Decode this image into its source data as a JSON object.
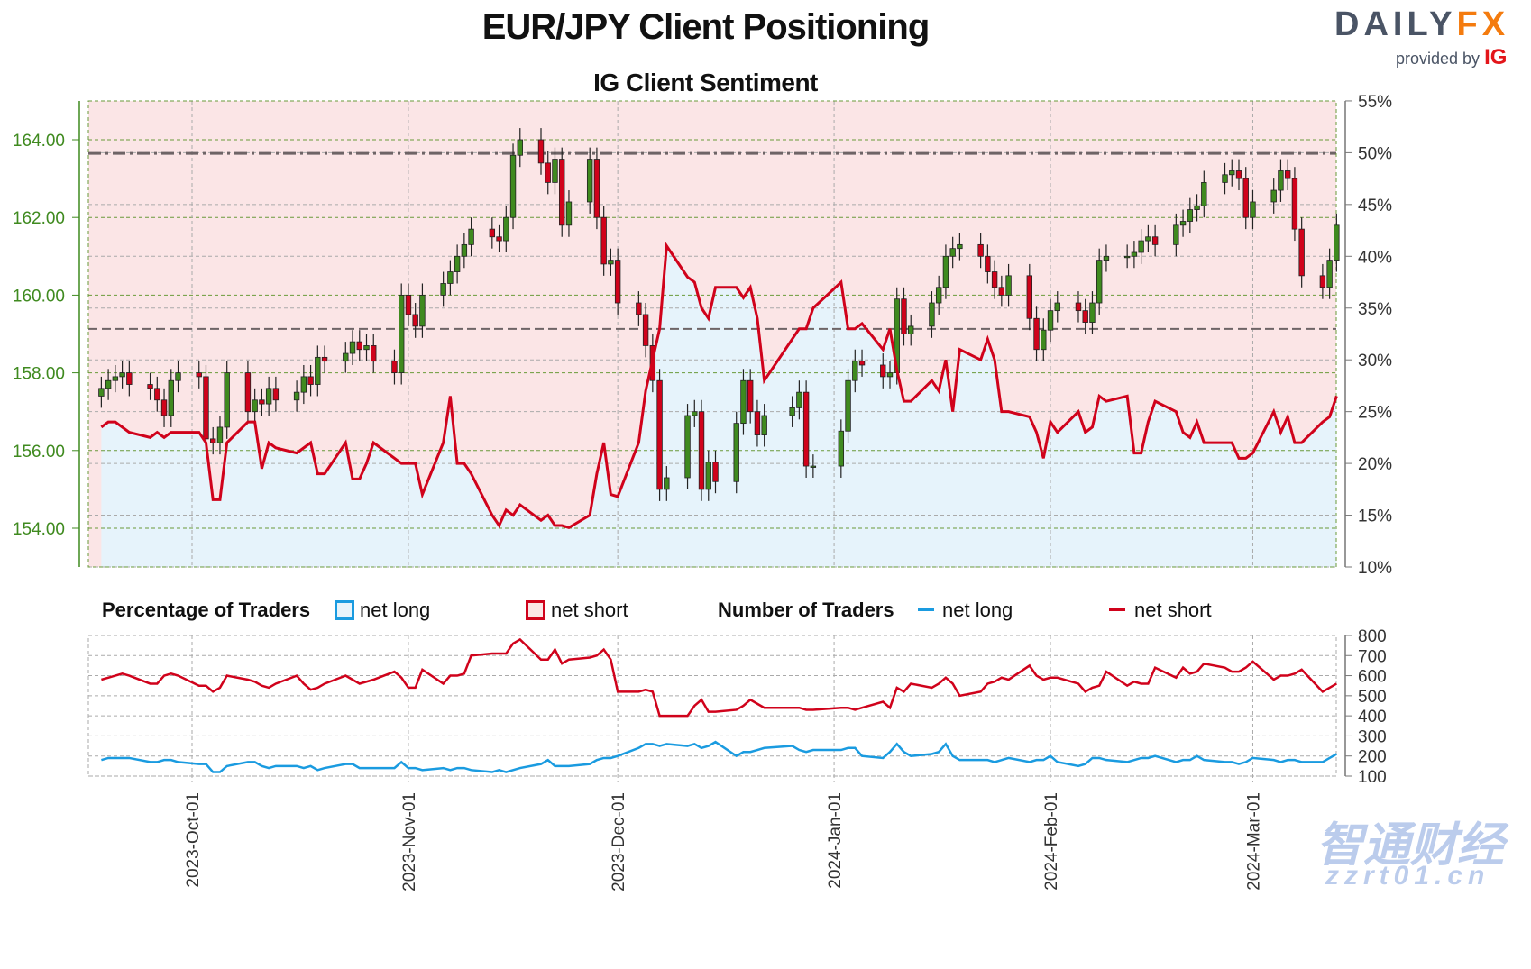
{
  "title": "EUR/JPY Client Positioning",
  "subtitle": "IG Client Sentiment",
  "logo": {
    "brand_main": "DAILY",
    "brand_accent": "FX",
    "provided_by": "provided by",
    "provider": "IG"
  },
  "watermark": {
    "line1": "智通财经",
    "line2": "zzrt01.cn"
  },
  "legend": {
    "pct_title": "Percentage of Traders",
    "pct_long": "net long",
    "pct_short": "net short",
    "num_title": "Number of Traders",
    "num_long": "net long",
    "num_short": "net short"
  },
  "colors": {
    "long": "#1a9be0",
    "short": "#d0021b",
    "long_fill": "#e6f3fb",
    "short_fill": "#fbe5e6",
    "candle_up": "#3f8a1f",
    "candle_down": "#d0021b",
    "price_axis": "#3f8a1f"
  },
  "chart_data": [
    {
      "type": "candlestick",
      "title": "EUR/JPY Client Positioning",
      "price_axis": {
        "ticks": [
          "154.00",
          "156.00",
          "158.00",
          "160.00",
          "162.00",
          "164.00"
        ],
        "range": [
          153,
          165
        ]
      },
      "pct_axis": {
        "ticks": [
          "10%",
          "15%",
          "20%",
          "25%",
          "30%",
          "35%",
          "40%",
          "45%",
          "50%",
          "55%"
        ],
        "range": [
          10,
          55
        ]
      },
      "x_ticks": [
        "2023-Oct-01",
        "2023-Nov-01",
        "2023-Dec-01",
        "2024-Jan-01",
        "2024-Feb-01",
        "2024-Mar-01"
      ],
      "reference_levels": [
        163.65,
        159.13
      ],
      "grid": true,
      "dates": [
        "2023-09-18",
        "2023-09-19",
        "2023-09-20",
        "2023-09-21",
        "2023-09-22",
        "2023-09-25",
        "2023-09-26",
        "2023-09-27",
        "2023-09-28",
        "2023-09-29",
        "2023-10-02",
        "2023-10-03",
        "2023-10-04",
        "2023-10-05",
        "2023-10-06",
        "2023-10-09",
        "2023-10-10",
        "2023-10-11",
        "2023-10-12",
        "2023-10-13",
        "2023-10-16",
        "2023-10-17",
        "2023-10-18",
        "2023-10-19",
        "2023-10-20",
        "2023-10-23",
        "2023-10-24",
        "2023-10-25",
        "2023-10-26",
        "2023-10-27",
        "2023-10-30",
        "2023-10-31",
        "2023-11-01",
        "2023-11-02",
        "2023-11-03",
        "2023-11-06",
        "2023-11-07",
        "2023-11-08",
        "2023-11-09",
        "2023-11-10",
        "2023-11-13",
        "2023-11-14",
        "2023-11-15",
        "2023-11-16",
        "2023-11-17",
        "2023-11-20",
        "2023-11-21",
        "2023-11-22",
        "2023-11-23",
        "2023-11-24",
        "2023-11-27",
        "2023-11-28",
        "2023-11-29",
        "2023-11-30",
        "2023-12-01",
        "2023-12-04",
        "2023-12-05",
        "2023-12-06",
        "2023-12-07",
        "2023-12-08",
        "2023-12-11",
        "2023-12-12",
        "2023-12-13",
        "2023-12-14",
        "2023-12-15",
        "2023-12-18",
        "2023-12-19",
        "2023-12-20",
        "2023-12-21",
        "2023-12-22",
        "2023-12-26",
        "2023-12-27",
        "2023-12-28",
        "2023-12-29",
        "2024-01-02",
        "2024-01-03",
        "2024-01-04",
        "2024-01-05",
        "2024-01-08",
        "2024-01-09",
        "2024-01-10",
        "2024-01-11",
        "2024-01-12",
        "2024-01-15",
        "2024-01-16",
        "2024-01-17",
        "2024-01-18",
        "2024-01-19",
        "2024-01-22",
        "2024-01-23",
        "2024-01-24",
        "2024-01-25",
        "2024-01-26",
        "2024-01-29",
        "2024-01-30",
        "2024-01-31",
        "2024-02-01",
        "2024-02-02",
        "2024-02-05",
        "2024-02-06",
        "2024-02-07",
        "2024-02-08",
        "2024-02-09",
        "2024-02-12",
        "2024-02-13",
        "2024-02-14",
        "2024-02-15",
        "2024-02-16",
        "2024-02-19",
        "2024-02-20",
        "2024-02-21",
        "2024-02-22",
        "2024-02-23",
        "2024-02-26",
        "2024-02-27",
        "2024-02-28",
        "2024-02-29",
        "2024-03-01",
        "2024-03-04",
        "2024-03-05",
        "2024-03-06",
        "2024-03-07",
        "2024-03-08",
        "2024-03-11",
        "2024-03-12",
        "2024-03-13"
      ],
      "close": [
        157.6,
        157.8,
        157.9,
        158.0,
        157.7,
        157.6,
        157.3,
        156.9,
        157.8,
        158.0,
        157.9,
        156.3,
        156.2,
        156.6,
        158.0,
        157.0,
        157.3,
        157.2,
        157.6,
        157.3,
        157.5,
        157.9,
        157.7,
        158.4,
        158.3,
        158.5,
        158.8,
        158.6,
        158.7,
        158.3,
        158.0,
        160.0,
        159.5,
        159.2,
        160.0,
        160.3,
        160.6,
        161.0,
        161.3,
        161.7,
        161.5,
        161.4,
        162.0,
        163.6,
        164.0,
        163.4,
        162.9,
        163.5,
        161.8,
        162.4,
        163.5,
        162.0,
        160.8,
        160.9,
        159.8,
        159.5,
        158.7,
        157.8,
        155.0,
        155.3,
        156.9,
        157.0,
        155.0,
        155.7,
        155.2,
        156.7,
        157.8,
        157.0,
        156.4,
        156.9,
        157.1,
        157.5,
        155.6,
        155.6,
        156.5,
        157.8,
        158.3,
        158.2,
        157.9,
        158.0,
        159.9,
        159.0,
        159.2,
        159.8,
        160.2,
        161.0,
        161.2,
        161.3,
        161.0,
        160.6,
        160.2,
        160.0,
        160.5,
        159.4,
        158.6,
        159.1,
        159.6,
        159.8,
        159.6,
        159.3,
        159.8,
        160.9,
        161.0,
        161.0,
        161.1,
        161.4,
        161.5,
        161.3,
        161.8,
        161.9,
        162.2,
        162.3,
        162.9,
        163.1,
        163.2,
        163.0,
        162.0,
        162.4,
        162.7,
        163.2,
        163.0,
        161.7,
        160.5,
        160.2,
        160.9,
        161.8
      ],
      "net_long_pct": [
        23.5,
        24,
        24,
        23.5,
        23,
        22.5,
        23,
        22.5,
        23,
        23,
        23,
        22,
        16.5,
        16.5,
        22,
        24,
        24,
        19.5,
        22,
        21.5,
        21,
        21.5,
        22,
        19,
        19,
        22,
        18.5,
        18.5,
        20,
        22,
        20.5,
        20,
        20,
        20,
        17,
        22,
        26.5,
        20,
        20,
        19,
        15,
        14,
        15.5,
        15,
        16,
        14.5,
        15,
        14,
        14,
        13.8,
        15,
        19,
        22,
        17,
        16.8,
        22,
        27,
        30,
        33,
        41,
        38,
        37.5,
        35,
        34,
        37,
        37,
        36,
        37,
        34,
        28,
        32,
        33,
        33,
        35,
        37.5,
        33,
        33,
        33.5,
        31,
        33,
        29,
        26,
        26,
        28,
        27,
        30,
        25,
        31,
        30,
        32,
        30,
        25,
        25,
        24.5,
        23,
        20.5,
        24,
        23,
        25,
        23,
        23.5,
        26.5,
        26,
        26.5,
        21,
        21,
        24,
        26,
        25,
        23,
        22.5,
        24,
        22,
        22,
        22,
        20.5,
        20.5,
        21,
        25,
        23,
        24.5,
        22,
        22,
        24,
        24.5,
        26.5
      ]
    },
    {
      "type": "line",
      "y_axis": {
        "ticks": [
          "100",
          "200",
          "300",
          "400",
          "500",
          "600",
          "700",
          "800"
        ],
        "range": [
          100,
          800
        ]
      },
      "series": [
        {
          "name": "net short",
          "values": [
            580,
            590,
            600,
            610,
            600,
            560,
            560,
            600,
            610,
            600,
            550,
            550,
            520,
            540,
            600,
            580,
            570,
            550,
            540,
            560,
            600,
            560,
            530,
            540,
            560,
            600,
            580,
            560,
            570,
            580,
            620,
            590,
            540,
            540,
            630,
            560,
            600,
            600,
            610,
            700,
            710,
            710,
            710,
            760,
            780,
            680,
            680,
            730,
            660,
            680,
            690,
            700,
            730,
            680,
            520,
            520,
            530,
            520,
            400,
            400,
            400,
            450,
            480,
            420,
            420,
            430,
            450,
            480,
            460,
            440,
            440,
            440,
            430,
            430,
            440,
            440,
            430,
            440,
            470,
            440,
            540,
            520,
            560,
            540,
            560,
            590,
            560,
            500,
            520,
            560,
            570,
            590,
            580,
            650,
            600,
            580,
            590,
            590,
            560,
            520,
            540,
            550,
            620,
            550,
            570,
            560,
            560,
            640,
            590,
            640,
            610,
            620,
            660,
            640,
            620,
            620,
            640,
            670,
            580,
            600,
            600,
            610,
            630,
            520,
            540,
            560
          ]
        },
        {
          "name": "net long",
          "values": [
            180,
            190,
            190,
            190,
            190,
            170,
            170,
            180,
            180,
            170,
            160,
            160,
            120,
            120,
            150,
            170,
            170,
            150,
            140,
            150,
            150,
            140,
            150,
            130,
            140,
            160,
            160,
            140,
            140,
            140,
            140,
            170,
            140,
            140,
            130,
            140,
            130,
            140,
            140,
            130,
            120,
            130,
            120,
            130,
            140,
            160,
            180,
            150,
            150,
            150,
            160,
            180,
            190,
            190,
            200,
            240,
            260,
            260,
            250,
            260,
            250,
            260,
            240,
            250,
            270,
            200,
            220,
            220,
            230,
            240,
            250,
            230,
            220,
            230,
            230,
            240,
            240,
            200,
            190,
            220,
            260,
            220,
            200,
            210,
            220,
            260,
            200,
            180,
            180,
            180,
            170,
            180,
            190,
            170,
            180,
            180,
            200,
            170,
            150,
            160,
            190,
            190,
            180,
            170,
            180,
            190,
            190,
            200,
            170,
            180,
            180,
            200,
            180,
            170,
            170,
            160,
            170,
            190,
            180,
            170,
            180,
            180,
            170,
            170,
            190,
            210
          ]
        }
      ]
    }
  ]
}
